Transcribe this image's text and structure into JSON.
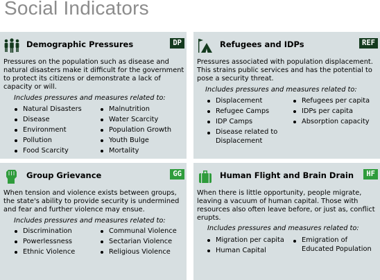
{
  "page_title": "Social Indicators",
  "colors": {
    "title": "#8c8c8c",
    "panel_bg": "#d7dfe1",
    "badge_dark": "#143a1e",
    "badge_green": "#2f9c3c"
  },
  "panels": [
    {
      "title": "Demographic Pressures",
      "badge": "DP",
      "icon": "people-icon",
      "description": "Pressures on the population such as disease and natural disasters make it difficult for the government to protect its citizens or demonstrate a lack of capacity or will.",
      "related_label": "Includes pressures and measures related to:",
      "col1": [
        "Natural Disasters",
        "Disease",
        "Environment",
        "Pollution",
        "Food Scarcity"
      ],
      "col2": [
        "Malnutrition",
        "Water Scarcity",
        "Population Growth",
        "Youth Bulge",
        "Mortality"
      ]
    },
    {
      "title": "Refugees and IDPs",
      "badge": "REF",
      "icon": "tent-icon",
      "description": "Pressures associated with population displacement. This strains public services and has the potential to pose a security threat.",
      "related_label": "Includes pressures and measures related to:",
      "col1": [
        "Displacement",
        "Refugee Camps",
        "IDP Camps",
        "Disease related to Displacement"
      ],
      "col2": [
        "Refugees per capita",
        "IDPs per capita",
        "Absorption capacity"
      ]
    },
    {
      "title": "Group Grievance",
      "badge": "GG",
      "icon": "fist-icon",
      "description": "When tension and violence exists between groups, the state's ability to provide security is undermined and fear and further violence may ensue.",
      "related_label": "Includes pressures and measures related to:",
      "col1": [
        "Discrimination",
        "Powerlessness",
        "Ethnic Violence"
      ],
      "col2": [
        "Communal Violence",
        "Sectarian Violence",
        "Religious Violence"
      ]
    },
    {
      "title": "Human Flight and Brain Drain",
      "badge": "HF",
      "icon": "suitcase-icon",
      "description": "When there is little opportunity, people migrate, leaving a vacuum of human capital. Those with resources also often leave before, or just as, conflict erupts.",
      "related_label": "Includes pressures and measures related to:",
      "col1": [
        "Migration per capita",
        "Human Capital"
      ],
      "col2": [
        "Emigration of Educated Population"
      ]
    }
  ]
}
